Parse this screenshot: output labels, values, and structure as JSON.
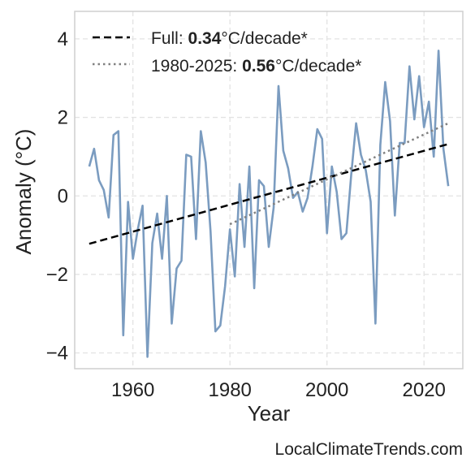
{
  "chart_data": {
    "type": "line",
    "xlabel": "Year",
    "ylabel": "Anomaly (°C)",
    "xlim": [
      1948,
      2028
    ],
    "ylim": [
      -4.4,
      4.7
    ],
    "x_ticks": [
      1960,
      1980,
      2000,
      2020
    ],
    "y_ticks": [
      -4,
      -2,
      0,
      2,
      4
    ],
    "y_tick_labels": [
      "−4",
      "−2",
      "0",
      "2",
      "4"
    ],
    "grid": true,
    "legend_position": "top-left",
    "series": [
      {
        "style": "solid",
        "color": "#7b9cc0",
        "x": [
          1951,
          1952,
          1953,
          1954,
          1955,
          1956,
          1957,
          1958,
          1959,
          1960,
          1961,
          1962,
          1963,
          1964,
          1965,
          1966,
          1967,
          1968,
          1969,
          1970,
          1971,
          1972,
          1973,
          1974,
          1975,
          1976,
          1977,
          1978,
          1979,
          1980,
          1981,
          1982,
          1983,
          1984,
          1985,
          1986,
          1987,
          1988,
          1989,
          1990,
          1991,
          1992,
          1993,
          1994,
          1995,
          1996,
          1997,
          1998,
          1999,
          2000,
          2001,
          2002,
          2003,
          2004,
          2005,
          2006,
          2007,
          2008,
          2009,
          2010,
          2011,
          2012,
          2013,
          2014,
          2015,
          2016,
          2017,
          2018,
          2019,
          2020,
          2021,
          2022,
          2023,
          2024,
          2025
        ],
        "values": [
          0.75,
          1.2,
          0.4,
          0.15,
          -0.55,
          1.55,
          1.65,
          -3.55,
          -0.15,
          -1.6,
          -0.85,
          -0.25,
          -4.1,
          -1.2,
          -0.45,
          -1.6,
          0.0,
          -3.25,
          -1.85,
          -1.65,
          1.05,
          1.0,
          -1.1,
          1.65,
          0.85,
          -0.9,
          -3.45,
          -3.3,
          -2.3,
          -0.85,
          -2.05,
          0.3,
          -1.3,
          0.75,
          -2.35,
          0.4,
          0.25,
          -1.3,
          -0.3,
          2.8,
          1.15,
          0.7,
          -0.05,
          0.1,
          -0.4,
          -0.05,
          0.75,
          1.7,
          1.45,
          -0.95,
          0.75,
          0.1,
          -1.1,
          -0.95,
          0.55,
          1.85,
          1.05,
          0.65,
          -0.15,
          -3.25,
          1.3,
          2.9,
          1.9,
          -0.5,
          1.35,
          1.35,
          3.3,
          1.95,
          3.05,
          1.75,
          2.4,
          1.0,
          3.7,
          1.2,
          0.25
        ]
      },
      {
        "name": "Full: 0.34°C/decade*",
        "label_prefix": "Full: ",
        "label_value": "0.34",
        "label_suffix": "°C/decade*",
        "style": "dashed",
        "color": "#000000",
        "x": [
          1951,
          2025
        ],
        "values": [
          -1.22,
          1.32
        ]
      },
      {
        "name": "1980-2025: 0.56°C/decade*",
        "label_prefix": "1980-2025: ",
        "label_value": "0.56",
        "label_suffix": "°C/decade*",
        "style": "dotted",
        "color": "#808080",
        "x": [
          1980,
          2025
        ],
        "values": [
          -0.72,
          1.85
        ]
      }
    ]
  },
  "source_text": "LocalClimateTrends.com"
}
